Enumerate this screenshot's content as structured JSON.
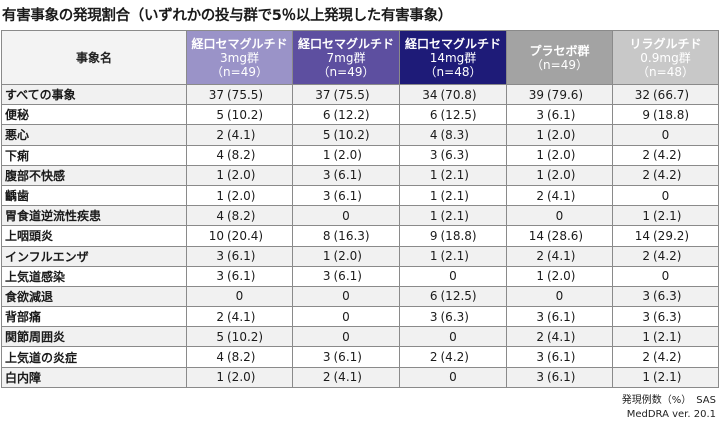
{
  "title": "有害事象の発現割合（いずれかの投与群で5％以上発現した有害事象）",
  "header": {
    "event_col": "事象名",
    "groups": [
      {
        "name": "経口セマグルチド",
        "dose": "3mg群",
        "n": "（n=49）",
        "color": "#9a93c8"
      },
      {
        "name": "経口セマグルチド",
        "dose": "7mg群",
        "n": "（n=49）",
        "color": "#5d4fa0"
      },
      {
        "name": "経口セマグルチド",
        "dose": "14mg群",
        "n": "（n=48）",
        "color": "#1e1b78"
      },
      {
        "name": "プラセボ群",
        "dose": "",
        "n": "（n=49）",
        "color": "#a3a3a3"
      },
      {
        "name": "リラグルチド",
        "dose": "0.9mg群",
        "n": "（n=48）",
        "color": "#c8c8c8"
      }
    ]
  },
  "rows": [
    {
      "event": "すべての事象",
      "cells": [
        [
          "37",
          "(75.5)"
        ],
        [
          "37",
          "(75.5)"
        ],
        [
          "34",
          "(70.8)"
        ],
        [
          "39",
          "(79.6)"
        ],
        [
          "32",
          "(66.7)"
        ]
      ]
    },
    {
      "event": "便秘",
      "cells": [
        [
          "5",
          "(10.2)"
        ],
        [
          "6",
          "(12.2)"
        ],
        [
          "6",
          "(12.5)"
        ],
        [
          "3",
          "(6.1)"
        ],
        [
          "9",
          "(18.8)"
        ]
      ]
    },
    {
      "event": "悪心",
      "cells": [
        [
          "2",
          "(4.1)"
        ],
        [
          "5",
          "(10.2)"
        ],
        [
          "4",
          "(8.3)"
        ],
        [
          "1",
          "(2.0)"
        ],
        [
          "0",
          ""
        ]
      ]
    },
    {
      "event": "下痢",
      "cells": [
        [
          "4",
          "(8.2)"
        ],
        [
          "1",
          "(2.0)"
        ],
        [
          "3",
          "(6.3)"
        ],
        [
          "1",
          "(2.0)"
        ],
        [
          "2",
          "(4.2)"
        ]
      ]
    },
    {
      "event": "腹部不快感",
      "cells": [
        [
          "1",
          "(2.0)"
        ],
        [
          "3",
          "(6.1)"
        ],
        [
          "1",
          "(2.1)"
        ],
        [
          "1",
          "(2.0)"
        ],
        [
          "2",
          "(4.2)"
        ]
      ]
    },
    {
      "event": "齲歯",
      "cells": [
        [
          "1",
          "(2.0)"
        ],
        [
          "3",
          "(6.1)"
        ],
        [
          "1",
          "(2.1)"
        ],
        [
          "2",
          "(4.1)"
        ],
        [
          "0",
          ""
        ]
      ]
    },
    {
      "event": "胃食道逆流性疾患",
      "cells": [
        [
          "4",
          "(8.2)"
        ],
        [
          "0",
          ""
        ],
        [
          "1",
          "(2.1)"
        ],
        [
          "0",
          ""
        ],
        [
          "1",
          "(2.1)"
        ]
      ]
    },
    {
      "event": "上咽頭炎",
      "cells": [
        [
          "10",
          "(20.4)"
        ],
        [
          "8",
          "(16.3)"
        ],
        [
          "9",
          "(18.8)"
        ],
        [
          "14",
          "(28.6)"
        ],
        [
          "14",
          "(29.2)"
        ]
      ]
    },
    {
      "event": "インフルエンザ",
      "cells": [
        [
          "3",
          "(6.1)"
        ],
        [
          "1",
          "(2.0)"
        ],
        [
          "1",
          "(2.1)"
        ],
        [
          "2",
          "(4.1)"
        ],
        [
          "2",
          "(4.2)"
        ]
      ]
    },
    {
      "event": "上気道感染",
      "cells": [
        [
          "3",
          "(6.1)"
        ],
        [
          "3",
          "(6.1)"
        ],
        [
          "0",
          ""
        ],
        [
          "1",
          "(2.0)"
        ],
        [
          "0",
          ""
        ]
      ]
    },
    {
      "event": "食欲減退",
      "cells": [
        [
          "0",
          ""
        ],
        [
          "0",
          ""
        ],
        [
          "6",
          "(12.5)"
        ],
        [
          "0",
          ""
        ],
        [
          "3",
          "(6.3)"
        ]
      ]
    },
    {
      "event": "背部痛",
      "cells": [
        [
          "2",
          "(4.1)"
        ],
        [
          "0",
          ""
        ],
        [
          "3",
          "(6.3)"
        ],
        [
          "3",
          "(6.1)"
        ],
        [
          "3",
          "(6.3)"
        ]
      ]
    },
    {
      "event": "関節周囲炎",
      "cells": [
        [
          "5",
          "(10.2)"
        ],
        [
          "0",
          ""
        ],
        [
          "0",
          ""
        ],
        [
          "2",
          "(4.1)"
        ],
        [
          "1",
          "(2.1)"
        ]
      ]
    },
    {
      "event": "上気道の炎症",
      "cells": [
        [
          "4",
          "(8.2)"
        ],
        [
          "3",
          "(6.1)"
        ],
        [
          "2",
          "(4.2)"
        ],
        [
          "3",
          "(6.1)"
        ],
        [
          "2",
          "(4.2)"
        ]
      ]
    },
    {
      "event": "白内障",
      "cells": [
        [
          "1",
          "(2.0)"
        ],
        [
          "2",
          "(4.1)"
        ],
        [
          "0",
          ""
        ],
        [
          "3",
          "(6.1)"
        ],
        [
          "1",
          "(2.1)"
        ]
      ]
    }
  ],
  "footnote": {
    "line1": "発現例数（%）　SAS",
    "line2": "MedDRA ver. 20.1"
  }
}
